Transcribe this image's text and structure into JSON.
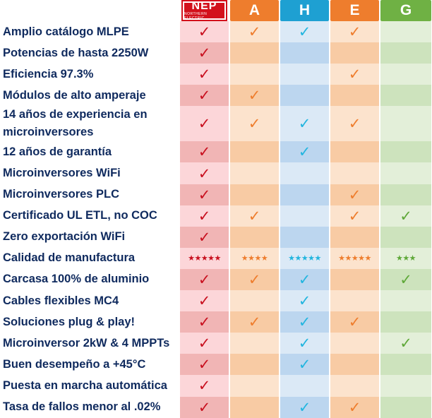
{
  "brands": [
    {
      "label": "NEP",
      "sublabel": "NORTHERN ELECTRIC",
      "header_color": "#d3111c",
      "check_color": "#c8101f",
      "light": "#fcd6d9",
      "dark": "#f1b5b5"
    },
    {
      "label": "A",
      "header_color": "#ee7d2d",
      "check_color": "#ee7d2d",
      "light": "#fce3cd",
      "dark": "#f8cba4"
    },
    {
      "label": "H",
      "header_color": "#1ea0d2",
      "check_color": "#22b5df",
      "light": "#dbe9f6",
      "dark": "#bcd6ef"
    },
    {
      "label": "E",
      "header_color": "#ee7d2d",
      "check_color": "#ee7d2d",
      "light": "#fce3cd",
      "dark": "#f8cba4"
    },
    {
      "label": "G",
      "header_color": "#6fb144",
      "check_color": "#5ea838",
      "light": "#e3efd9",
      "dark": "#cde3bd"
    }
  ],
  "check_glyph": "✓",
  "rows": [
    {
      "label": "Amplio catálogo MLPE",
      "marks": [
        1,
        1,
        1,
        1,
        0
      ]
    },
    {
      "label": "Potencias de hasta 2250W",
      "marks": [
        1,
        0,
        0,
        0,
        0
      ]
    },
    {
      "label": "Eficiencia 97.3%",
      "marks": [
        1,
        0,
        0,
        1,
        0
      ]
    },
    {
      "label": "Módulos de alto amperaje",
      "marks": [
        1,
        1,
        0,
        0,
        0
      ]
    },
    {
      "label": "14 años de experiencia en microinversores",
      "marks": [
        1,
        1,
        1,
        1,
        0
      ],
      "tall": true
    },
    {
      "label": "12 años de garantía",
      "marks": [
        1,
        0,
        1,
        0,
        0
      ]
    },
    {
      "label": "Microinversores WiFi",
      "marks": [
        1,
        0,
        0,
        0,
        0
      ]
    },
    {
      "label": "Microinversores PLC",
      "marks": [
        1,
        0,
        0,
        1,
        0
      ]
    },
    {
      "label": "Certificado UL ETL, no COC",
      "marks": [
        1,
        1,
        0,
        1,
        1
      ]
    },
    {
      "label": "Zero exportación WiFi",
      "marks": [
        1,
        0,
        0,
        0,
        0
      ]
    },
    {
      "label": "Calidad de manufactura",
      "stars": [
        "★★★★★",
        "★★★★",
        "★★★★★",
        "★★★★★",
        "★★★"
      ]
    },
    {
      "label": "Carcasa 100% de aluminio",
      "marks": [
        1,
        1,
        1,
        0,
        1
      ]
    },
    {
      "label": "Cables flexibles MC4",
      "marks": [
        1,
        0,
        1,
        0,
        0
      ]
    },
    {
      "label": "Soluciones plug & play!",
      "marks": [
        1,
        1,
        1,
        1,
        0
      ]
    },
    {
      "label": "Microinversor 2kW & 4 MPPTs",
      "marks": [
        1,
        0,
        1,
        0,
        1
      ]
    },
    {
      "label": "Buen desempeño a +45°C",
      "marks": [
        1,
        0,
        1,
        0,
        0
      ]
    },
    {
      "label": "Puesta en marcha automática",
      "marks": [
        1,
        0,
        0,
        0,
        0
      ]
    },
    {
      "label": "Tasa de fallos menor al .02%",
      "marks": [
        1,
        0,
        1,
        1,
        0
      ]
    }
  ]
}
